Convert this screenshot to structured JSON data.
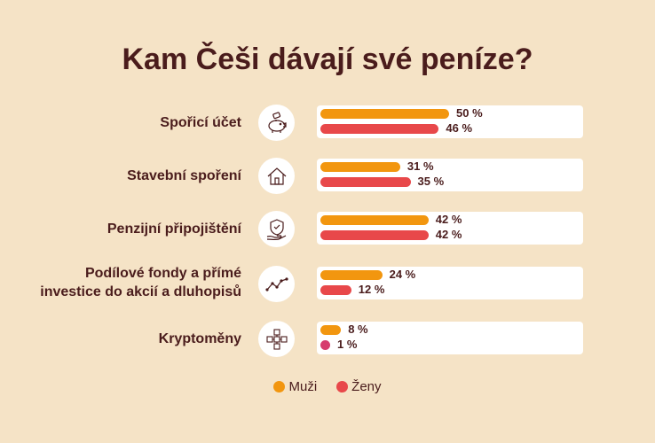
{
  "chart_data": {
    "type": "bar",
    "title": "Kam Češi dávají své peníze?",
    "categories": [
      "Spořicí účet",
      "Stavební spoření",
      "Penzijní připojištění",
      "Podílové fondy a přímé investice do akcií a dluhopisů",
      "Kryptoměny"
    ],
    "series": [
      {
        "name": "Muži",
        "values": [
          50,
          31,
          42,
          24,
          8
        ],
        "color": "#f2960f"
      },
      {
        "name": "Ženy",
        "values": [
          46,
          35,
          42,
          12,
          1
        ],
        "color": "#e8484a"
      }
    ],
    "value_labels": {
      "Muži": [
        "50 %",
        "31 %",
        "42 %",
        "24 %",
        "8 %"
      ],
      "Ženy": [
        "46 %",
        "35 %",
        "42 %",
        "12 %",
        "1 %"
      ]
    },
    "xlim": [
      0,
      100
    ],
    "orientation": "horizontal",
    "grid": false,
    "legend": "bottom-center"
  },
  "category_lines": [
    [
      "Spořicí účet"
    ],
    [
      "Stavební spoření"
    ],
    [
      "Penzijní připojištění"
    ],
    [
      "Podílové fondy a přímé",
      "investice do akcií a dluhopisů"
    ],
    [
      "Kryptoměny"
    ]
  ],
  "icons": [
    "piggy-bank-icon",
    "house-icon",
    "shield-hand-icon",
    "chart-line-icon",
    "crypto-blocks-icon"
  ],
  "colors": {
    "background": "#f5e3c6",
    "text": "#4a1c1c",
    "muzi": "#f2960f",
    "zeny": "#e8484a",
    "zeny_small": "#d63c6e"
  }
}
